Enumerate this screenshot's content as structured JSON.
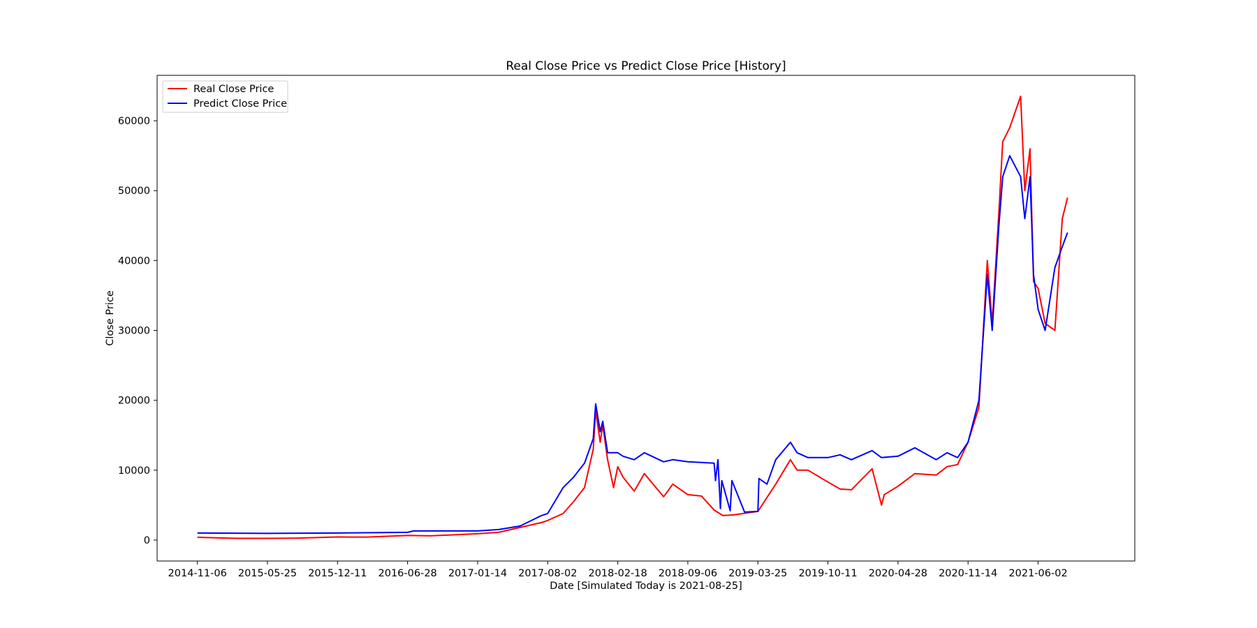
{
  "chart_data": {
    "type": "line",
    "title": "Real Close Price vs Predict Close Price [History]",
    "xlabel": "Date [Simulated Today is 2021-08-25]",
    "ylabel": "Close Price",
    "ylim": [
      -3000,
      66500
    ],
    "xlim": [
      "2014-07-14",
      "2022-03-05"
    ],
    "grid": false,
    "legend_position": "upper-left",
    "x_ticks": [
      "2014-11-06",
      "2015-05-25",
      "2015-12-11",
      "2016-06-28",
      "2017-01-14",
      "2017-08-02",
      "2018-02-18",
      "2018-09-06",
      "2019-03-25",
      "2019-10-11",
      "2020-04-28",
      "2020-11-14",
      "2021-06-02"
    ],
    "y_ticks": [
      0,
      10000,
      20000,
      30000,
      40000,
      50000,
      60000
    ],
    "series": [
      {
        "name": "Real Close Price",
        "color": "#ff0000",
        "x": [
          "2014-11-06",
          "2015-01-15",
          "2015-03-01",
          "2015-05-25",
          "2015-08-15",
          "2015-12-11",
          "2016-03-01",
          "2016-06-28",
          "2016-09-01",
          "2017-01-14",
          "2017-03-15",
          "2017-05-15",
          "2017-07-15",
          "2017-08-02",
          "2017-09-15",
          "2017-10-15",
          "2017-11-15",
          "2017-12-10",
          "2017-12-17",
          "2017-12-30",
          "2018-01-06",
          "2018-01-20",
          "2018-02-06",
          "2018-02-18",
          "2018-03-05",
          "2018-04-06",
          "2018-05-05",
          "2018-06-29",
          "2018-07-25",
          "2018-09-06",
          "2018-10-15",
          "2018-11-20",
          "2018-12-15",
          "2019-01-15",
          "2019-03-25",
          "2019-05-15",
          "2019-06-26",
          "2019-07-15",
          "2019-08-15",
          "2019-10-11",
          "2019-11-15",
          "2019-12-17",
          "2020-02-14",
          "2020-03-12",
          "2020-03-20",
          "2020-04-28",
          "2020-06-15",
          "2020-08-15",
          "2020-09-15",
          "2020-10-15",
          "2020-11-14",
          "2020-12-15",
          "2021-01-08",
          "2021-01-22",
          "2021-02-10",
          "2021-02-21",
          "2021-03-13",
          "2021-04-13",
          "2021-04-25",
          "2021-05-10",
          "2021-05-20",
          "2021-06-02",
          "2021-06-22",
          "2021-07-20",
          "2021-08-10",
          "2021-08-25"
        ],
        "y": [
          400,
          300,
          250,
          250,
          280,
          450,
          420,
          650,
          600,
          900,
          1100,
          1800,
          2500,
          2800,
          3800,
          5500,
          7500,
          13000,
          18500,
          14000,
          16500,
          11500,
          7500,
          10500,
          9000,
          7000,
          9500,
          6200,
          8000,
          6500,
          6300,
          4300,
          3500,
          3600,
          4100,
          8000,
          11500,
          10000,
          10000,
          8300,
          7300,
          7200,
          10200,
          5000,
          6500,
          7700,
          9500,
          9300,
          10500,
          10800,
          14000,
          19000,
          40000,
          31000,
          47000,
          57000,
          59000,
          63500,
          50000,
          56000,
          37000,
          36000,
          31000,
          30000,
          46000,
          49000
        ]
      },
      {
        "name": "Predict Close Price",
        "color": "#0000ff",
        "x": [
          "2014-11-06",
          "2015-05-25",
          "2015-12-11",
          "2016-06-28",
          "2016-07-15",
          "2017-01-14",
          "2017-03-15",
          "2017-05-15",
          "2017-07-15",
          "2017-08-02",
          "2017-09-15",
          "2017-10-15",
          "2017-11-15",
          "2017-12-10",
          "2017-12-17",
          "2017-12-30",
          "2018-01-06",
          "2018-01-20",
          "2018-02-18",
          "2018-03-05",
          "2018-04-06",
          "2018-05-05",
          "2018-06-29",
          "2018-07-25",
          "2018-09-06",
          "2018-10-15",
          "2018-11-20",
          "2018-11-24",
          "2018-12-01",
          "2018-12-08",
          "2018-12-12",
          "2019-01-05",
          "2019-01-10",
          "2019-02-15",
          "2019-03-25",
          "2019-03-28",
          "2019-04-20",
          "2019-05-15",
          "2019-06-26",
          "2019-07-15",
          "2019-08-15",
          "2019-10-11",
          "2019-11-15",
          "2019-12-17",
          "2020-02-14",
          "2020-03-12",
          "2020-04-28",
          "2020-06-15",
          "2020-08-15",
          "2020-09-15",
          "2020-10-15",
          "2020-11-14",
          "2020-12-15",
          "2021-01-08",
          "2021-01-22",
          "2021-02-10",
          "2021-02-21",
          "2021-03-13",
          "2021-04-13",
          "2021-04-25",
          "2021-05-10",
          "2021-05-20",
          "2021-06-02",
          "2021-06-22",
          "2021-07-20",
          "2021-08-10",
          "2021-08-25"
        ],
        "y": [
          1000,
          950,
          1000,
          1100,
          1300,
          1300,
          1500,
          2000,
          3500,
          3800,
          7500,
          9000,
          11000,
          14500,
          19500,
          15500,
          17000,
          12500,
          12500,
          12000,
          11500,
          12500,
          11200,
          11500,
          11200,
          11100,
          11000,
          8500,
          11500,
          4500,
          8500,
          4200,
          8500,
          4000,
          4100,
          8800,
          8000,
          11500,
          14000,
          12500,
          11800,
          11800,
          12200,
          11500,
          12800,
          11800,
          12000,
          13200,
          11500,
          12500,
          11800,
          14000,
          20000,
          38000,
          30000,
          45000,
          52000,
          55000,
          52000,
          46000,
          52000,
          38000,
          33000,
          30000,
          39000,
          42000,
          44000
        ]
      }
    ]
  }
}
